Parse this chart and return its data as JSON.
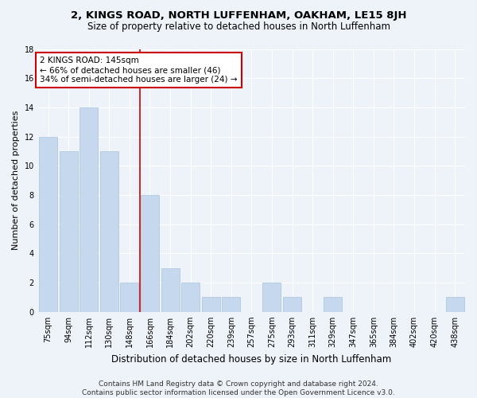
{
  "title": "2, KINGS ROAD, NORTH LUFFENHAM, OAKHAM, LE15 8JH",
  "subtitle": "Size of property relative to detached houses in North Luffenham",
  "xlabel": "Distribution of detached houses by size in North Luffenham",
  "ylabel": "Number of detached properties",
  "categories": [
    "75sqm",
    "94sqm",
    "112sqm",
    "130sqm",
    "148sqm",
    "166sqm",
    "184sqm",
    "202sqm",
    "220sqm",
    "239sqm",
    "257sqm",
    "275sqm",
    "293sqm",
    "311sqm",
    "329sqm",
    "347sqm",
    "365sqm",
    "384sqm",
    "402sqm",
    "420sqm",
    "438sqm"
  ],
  "values": [
    12,
    11,
    14,
    11,
    2,
    8,
    3,
    2,
    1,
    1,
    0,
    2,
    1,
    0,
    1,
    0,
    0,
    0,
    0,
    0,
    1
  ],
  "bar_color": "#c5d8ed",
  "bar_edge_color": "#a8c4dd",
  "vline_x_idx": 4,
  "vline_color": "#cc0000",
  "annotation_line1": "2 KINGS ROAD: 145sqm",
  "annotation_line2": "← 66% of detached houses are smaller (46)",
  "annotation_line3": "34% of semi-detached houses are larger (24) →",
  "annotation_box_color": "#cc0000",
  "ylim": [
    0,
    18
  ],
  "yticks": [
    0,
    2,
    4,
    6,
    8,
    10,
    12,
    14,
    16,
    18
  ],
  "footer": "Contains HM Land Registry data © Crown copyright and database right 2024.\nContains public sector information licensed under the Open Government Licence v3.0.",
  "bg_color": "#eef2f9",
  "title_fontsize": 9.5,
  "subtitle_fontsize": 8.5,
  "xlabel_fontsize": 8.5,
  "ylabel_fontsize": 8,
  "tick_fontsize": 7,
  "footer_fontsize": 6.5,
  "ann_fontsize": 7.5
}
